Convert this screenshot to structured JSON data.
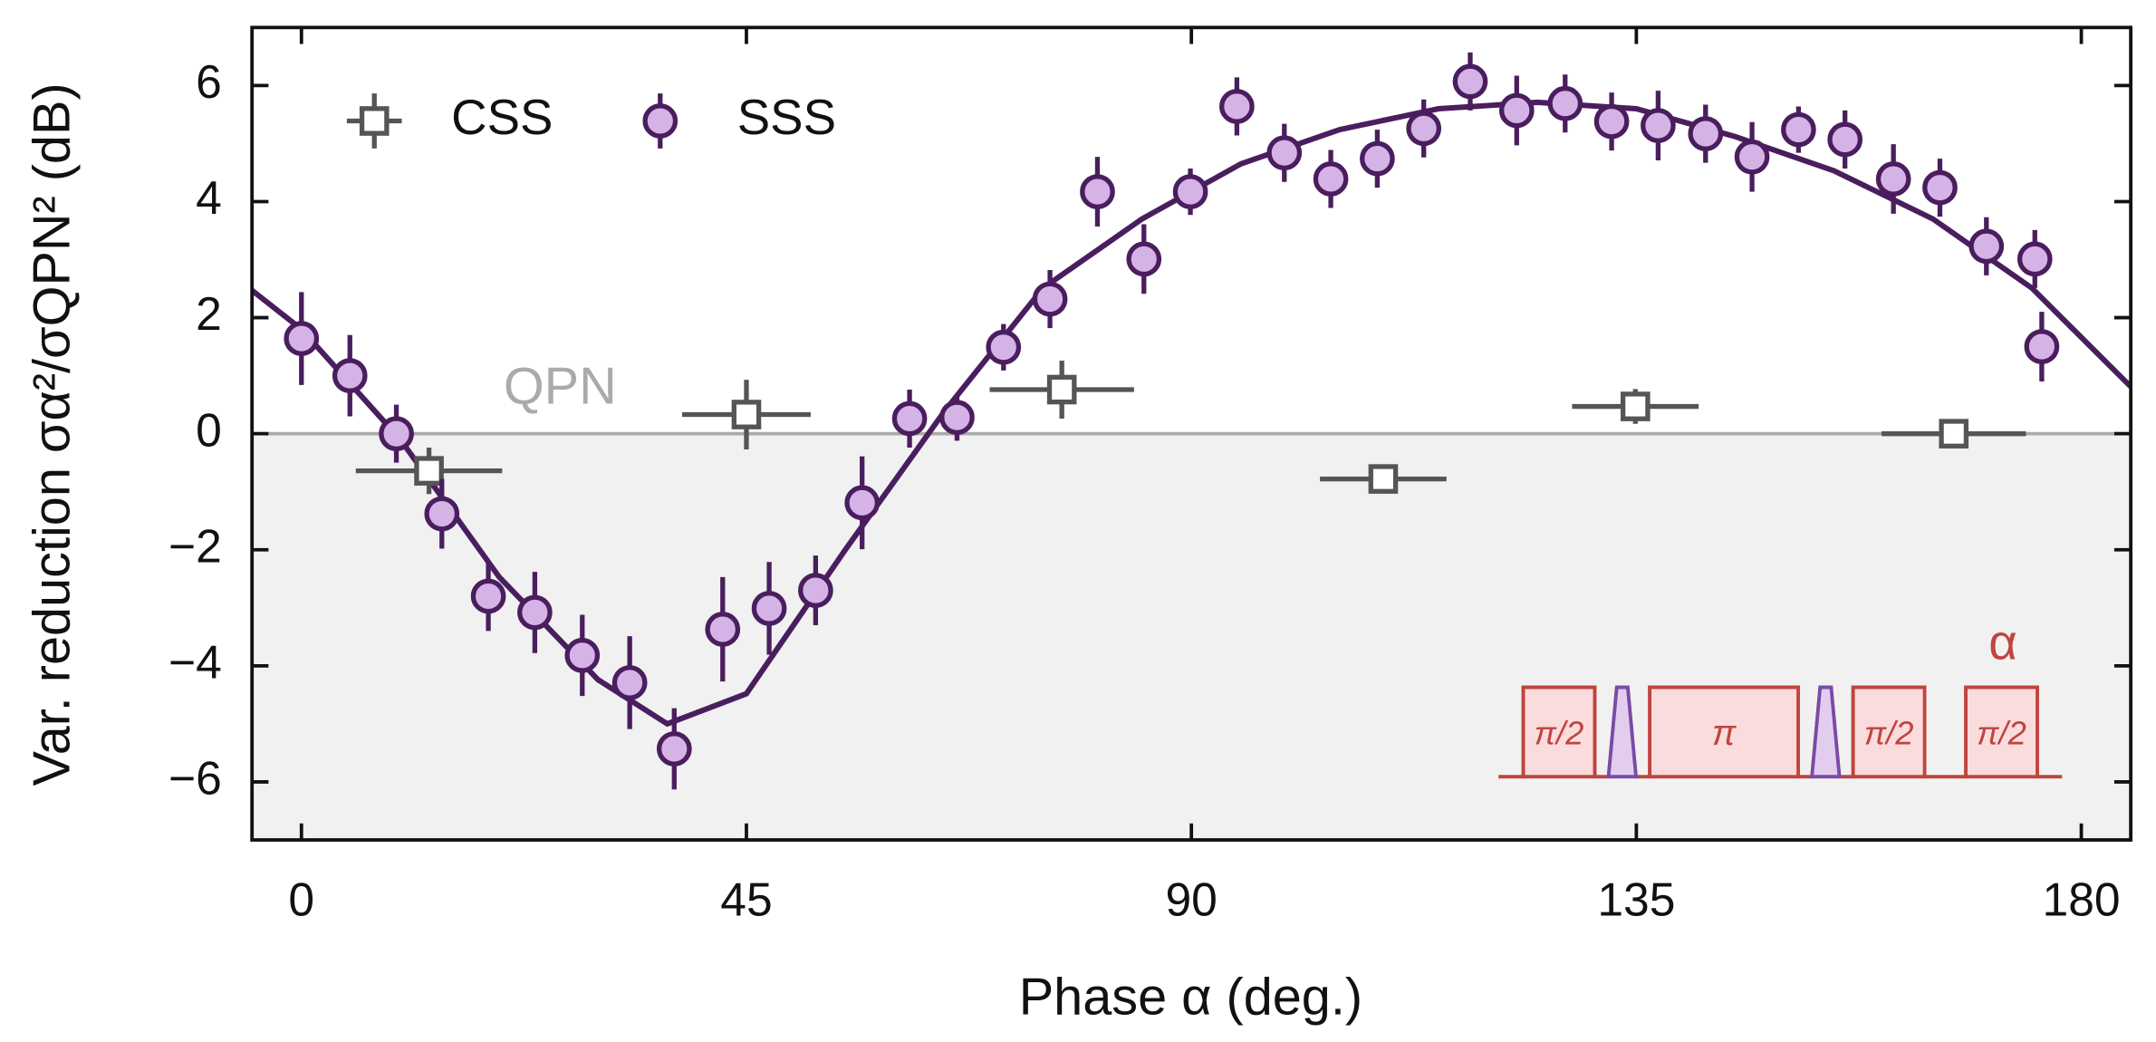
{
  "chart_data": {
    "type": "scatter",
    "xlabel": "Phase α (deg.)",
    "ylabel": "Var. reduction σα²/σQPN² (dB)",
    "xlim": [
      -5,
      185
    ],
    "ylim": [
      -7,
      7
    ],
    "xticks": [
      0,
      45,
      90,
      135,
      180
    ],
    "yticks": [
      {
        "value": -6,
        "label": "−6"
      },
      {
        "value": -4,
        "label": "−4"
      },
      {
        "value": -2,
        "label": "−2"
      },
      0,
      2,
      4,
      6
    ],
    "reference_line": {
      "value": 0,
      "label": "QPN",
      "color": "#aaaaaa"
    },
    "legend": "upper left",
    "series": [
      {
        "name": "CSS",
        "color": "#555555",
        "marker": "square",
        "x": [
          12.9,
          45,
          76.9,
          109.4,
          134.9,
          167.1
        ],
        "xerr": [
          7.4,
          6.5,
          7.3,
          6.4,
          6.4,
          7.3
        ],
        "values": [
          -0.64,
          0.33,
          0.76,
          -0.78,
          0.47,
          0
        ],
        "errors": [
          0.4,
          0.6,
          0.5,
          0.2,
          0.3,
          0.2
        ]
      },
      {
        "name": "SSS",
        "color": "#4a1e5e",
        "fill": "#d5b3e6",
        "marker": "circle",
        "x": [
          0,
          4.9,
          9.6,
          14.2,
          18.9,
          23.6,
          28.4,
          33.2,
          37.7,
          42.6,
          47.3,
          52.0,
          56.7,
          61.5,
          66.3,
          71.0,
          75.7,
          80.5,
          85.2,
          89.9,
          94.6,
          99.4,
          104.1,
          108.8,
          113.5,
          118.2,
          122.9,
          127.8,
          132.5,
          137.2,
          142.0,
          146.7,
          151.4,
          156.1,
          161.0,
          165.7,
          170.4,
          175.3,
          176.0
        ],
        "values": [
          1.64,
          1.0,
          0.0,
          -1.38,
          -2.8,
          -3.08,
          -3.82,
          -4.29,
          -5.43,
          -3.37,
          -3.01,
          -2.7,
          -1.19,
          0.26,
          0.28,
          1.49,
          2.32,
          4.17,
          3.01,
          4.17,
          5.64,
          4.84,
          4.39,
          4.74,
          5.26,
          6.07,
          5.57,
          5.69,
          5.38,
          5.31,
          5.17,
          4.77,
          5.24,
          5.07,
          4.39,
          4.24,
          3.23,
          3.01,
          1.5
        ],
        "errors": [
          0.8,
          0.7,
          0.5,
          0.6,
          0.6,
          0.7,
          0.7,
          0.8,
          0.7,
          0.9,
          0.8,
          0.6,
          0.8,
          0.5,
          0.4,
          0.4,
          0.5,
          0.6,
          0.6,
          0.4,
          0.5,
          0.5,
          0.5,
          0.5,
          0.5,
          0.5,
          0.6,
          0.5,
          0.5,
          0.6,
          0.5,
          0.6,
          0.4,
          0.5,
          0.6,
          0.5,
          0.5,
          0.5,
          0.6
        ]
      }
    ],
    "fit": {
      "color": "#4a1e5e",
      "x": [
        -5,
        0,
        10,
        20,
        30,
        37,
        45,
        55,
        65,
        75,
        85,
        95,
        105,
        115,
        125,
        135,
        145,
        155,
        165,
        175,
        185
      ],
      "values": [
        2.47,
        1.8,
        -0.1,
        -2.47,
        -4.24,
        -5.0,
        -4.48,
        -2.0,
        0.38,
        2.51,
        3.7,
        4.65,
        5.24,
        5.6,
        5.71,
        5.6,
        5.12,
        4.53,
        3.7,
        2.51,
        0.81
      ]
    },
    "inset": {
      "phase_label": "α",
      "pulse_labels": [
        "π/2",
        "π",
        "π/2",
        "π/2"
      ]
    }
  }
}
